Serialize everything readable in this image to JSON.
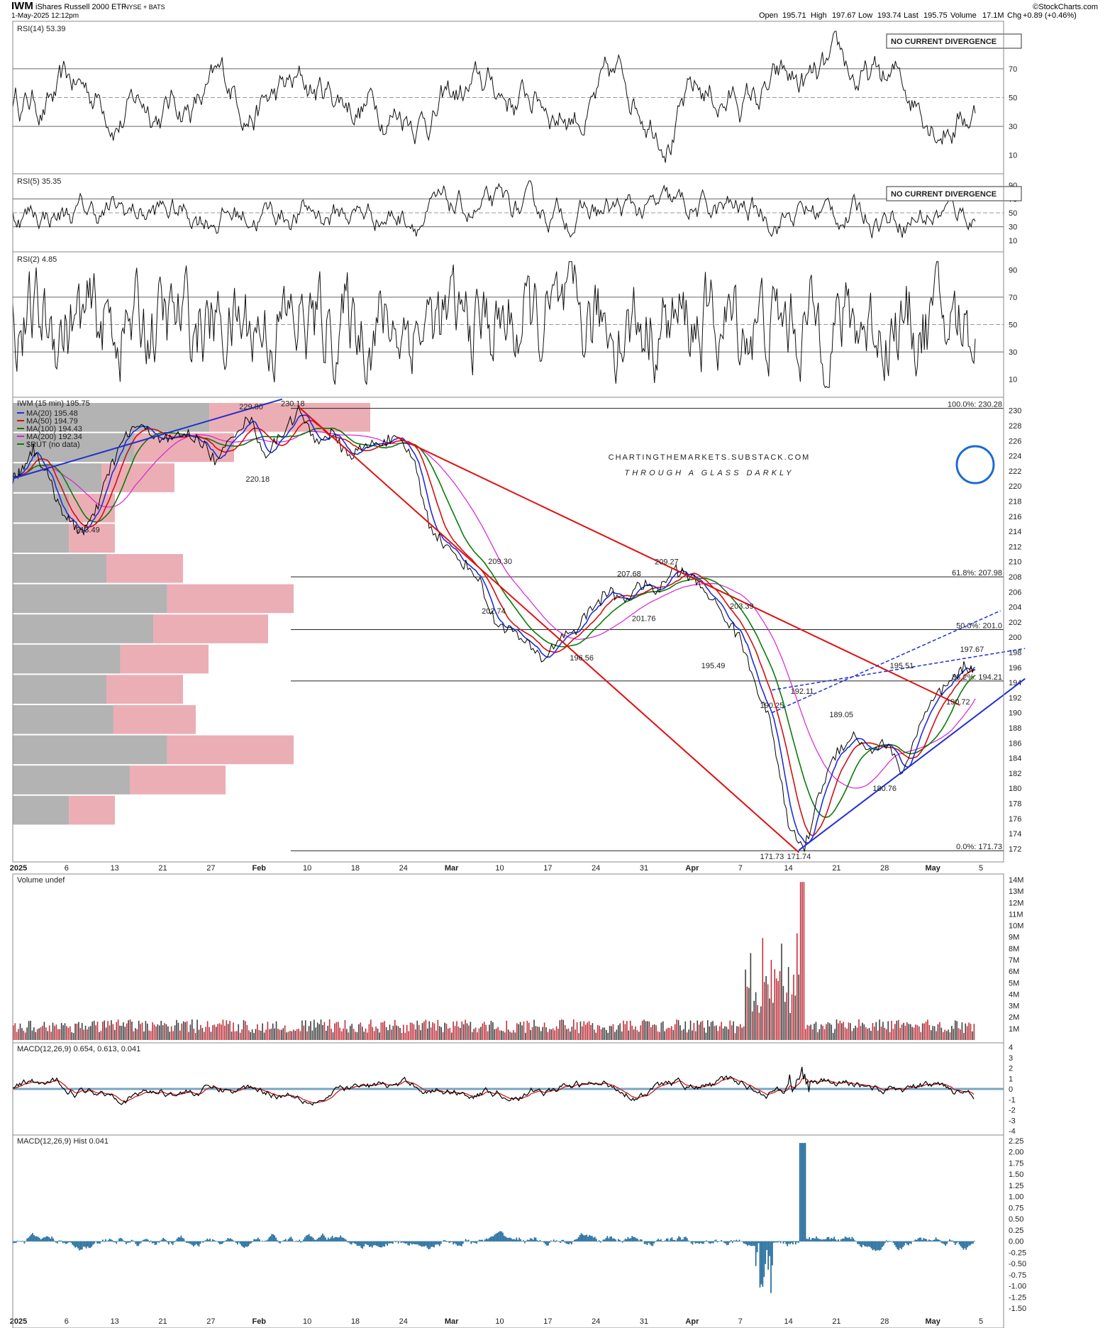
{
  "header": {
    "symbol": "IWM",
    "name": "iShares Russell 2000 ETF",
    "exchange": "NYSE + BATS",
    "date": "1-May-2025 12:12pm",
    "brand": "©StockCharts.com",
    "open_label": "Open",
    "open": "195.71",
    "high_label": "High",
    "high": "197.67",
    "low_label": "Low",
    "low": "193.74",
    "last_label": "Last",
    "last": "195.75",
    "volume_label": "Volume",
    "volume": "17.1M",
    "chg_label": "Chg",
    "chg": "+0.89 (+0.46%)"
  },
  "watermark": {
    "line1": "CHARTINGTHEMARKETS.SUBSTACK.COM",
    "line2": "THROUGH A GLASS DARKLY"
  },
  "colors": {
    "up": "#000000",
    "ma20": "#1f2fd6",
    "ma50": "#d01010",
    "ma100": "#0b7a0b",
    "ma200": "#d622d6",
    "volprofile_up": "#e8a0a8",
    "volprofile_dn": "#9a9a9a",
    "macd_hist": "#1f6a9a",
    "trend": "#e01010",
    "channel": "#1f2fd6"
  },
  "chart_data": [
    {
      "type": "line",
      "panel": "RSI(14)",
      "label": "RSI(14) 53.39",
      "ylim": [
        0,
        100
      ],
      "ticks": [
        10,
        30,
        50,
        70,
        90
      ],
      "annotation": "NO CURRENT DIVERGENCE",
      "last": 53.39
    },
    {
      "type": "line",
      "panel": "RSI(5)",
      "label": "RSI(5) 35.35",
      "ylim": [
        0,
        100
      ],
      "ticks": [
        10,
        30,
        50,
        70,
        90
      ],
      "annotation": "NO CURRENT DIVERGENCE",
      "last": 35.35
    },
    {
      "type": "line",
      "panel": "RSI(2)",
      "label": "RSI(2) 4.85",
      "ylim": [
        0,
        100
      ],
      "ticks": [
        10,
        30,
        50,
        70,
        90
      ],
      "last": 4.85
    },
    {
      "type": "line",
      "panel": "price",
      "label": "IWM (15 min) 195.75",
      "ylim": [
        171,
        231
      ],
      "ticks": [
        172,
        174,
        176,
        178,
        180,
        182,
        184,
        186,
        188,
        190,
        192,
        194,
        196,
        198,
        200,
        202,
        204,
        206,
        208,
        210,
        212,
        214,
        216,
        218,
        220,
        222,
        224,
        226,
        228,
        230
      ],
      "x_ticks": [
        "2025",
        "6",
        "13",
        "21",
        "27",
        "Feb",
        "10",
        "18",
        "24",
        "Mar",
        "10",
        "17",
        "24",
        "31",
        "Apr",
        "7",
        "14",
        "21",
        "28",
        "May",
        "5"
      ],
      "legend": [
        "MA(20) 195.48",
        "MA(50) 194.79",
        "MA(100) 194.43",
        "MA(200) 192.34",
        "$RUT (no data)"
      ],
      "series": [
        {
          "name": "IWM",
          "x": [
            0,
            10,
            25,
            40,
            55,
            70,
            85,
            100,
            118,
            135,
            150,
            170,
            190,
            210,
            230,
            250,
            270,
            290,
            310,
            330,
            350,
            370,
            390,
            410,
            430,
            450,
            470,
            490,
            510,
            530,
            550,
            570,
            590,
            610,
            630,
            650,
            670,
            690,
            710,
            730,
            750,
            770,
            790,
            810,
            830,
            850,
            870,
            890,
            910,
            930,
            950,
            970,
            990,
            1010,
            1030,
            1050,
            1070,
            1090,
            1110,
            1130,
            1150,
            1165,
            1179
          ],
          "y": [
            221,
            222,
            225,
            222,
            218,
            215,
            214,
            216,
            222,
            226,
            228,
            227,
            226,
            227,
            226,
            223,
            227,
            229,
            224,
            227,
            230,
            226,
            227,
            224,
            225,
            226,
            226,
            224,
            215,
            212,
            210,
            208,
            202,
            201,
            199,
            197,
            200,
            201,
            204,
            206,
            205,
            207,
            206,
            209,
            208,
            206,
            203,
            200,
            194,
            188,
            175,
            172,
            180,
            185,
            187,
            185,
            186,
            182,
            188,
            192,
            194,
            196,
            196
          ]
        }
      ],
      "labels": [
        {
          "x": 92,
          "y": 213.49,
          "text": "213.49"
        },
        {
          "x": 300,
          "y": 220.18,
          "text": "220.18"
        },
        {
          "x": 292,
          "y": 229.8,
          "text": "229.80"
        },
        {
          "x": 343,
          "y": 230.18,
          "text": "230.18"
        },
        {
          "x": 597,
          "y": 209.3,
          "text": "209.30"
        },
        {
          "x": 589,
          "y": 202.74,
          "text": "202.74"
        },
        {
          "x": 697,
          "y": 196.56,
          "text": "196.56"
        },
        {
          "x": 755,
          "y": 207.68,
          "text": "207.68"
        },
        {
          "x": 773,
          "y": 201.76,
          "text": "201.76"
        },
        {
          "x": 801,
          "y": 209.27,
          "text": "209.27"
        },
        {
          "x": 893,
          "y": 203.39,
          "text": "203.39"
        },
        {
          "x": 858,
          "y": 195.49,
          "text": "195.49"
        },
        {
          "x": 930,
          "y": 190.25,
          "text": "190.25"
        },
        {
          "x": 967,
          "y": 192.11,
          "text": "192.11"
        },
        {
          "x": 1015,
          "y": 189.05,
          "text": "189.05"
        },
        {
          "x": 1089,
          "y": 195.51,
          "text": "195.51"
        },
        {
          "x": 1175,
          "y": 197.67,
          "text": "197.67"
        },
        {
          "x": 1158,
          "y": 190.72,
          "text": "190.72"
        },
        {
          "x": 1068,
          "y": 180.76,
          "text": "180.76"
        },
        {
          "x": 930,
          "y": 171.73,
          "text": "171.73"
        },
        {
          "x": 963,
          "y": 171.74,
          "text": "171.74"
        }
      ],
      "fib": [
        {
          "text": "100.0%: 230.28",
          "y": 230.28
        },
        {
          "text": "61.8%: 207.98",
          "y": 207.98
        },
        {
          "text": "50.0%: 201.0",
          "y": 201.0
        },
        {
          "text": "38.2%: 194.21",
          "y": 194.21
        },
        {
          "text": "0.0%: 171.73",
          "y": 171.73
        }
      ]
    },
    {
      "type": "bar",
      "panel": "volume",
      "label": "Volume undef",
      "ylim": [
        0,
        14
      ],
      "unit": "M",
      "ticks": [
        "1M",
        "2M",
        "3M",
        "4M",
        "5M",
        "6M",
        "7M",
        "8M",
        "9M",
        "10M",
        "11M",
        "12M",
        "13M",
        "14M"
      ]
    },
    {
      "type": "line",
      "panel": "MACD",
      "label_prefix": "MACD(12,26,9)",
      "macd": "0.654",
      "signal": "0.613",
      "hist": "0.041",
      "ylim": [
        -4,
        4
      ],
      "ticks": [
        -4,
        -3,
        -2,
        -1,
        0,
        1,
        2,
        3,
        4
      ]
    },
    {
      "type": "bar",
      "panel": "MACD hist",
      "label": "MACD(12,26,9) Hist 0.041",
      "ylim": [
        -1.5,
        2.25
      ],
      "ticks": [
        "-1.50",
        "-1.25",
        "-1.00",
        "-0.75",
        "-0.50",
        "-0.25",
        "0.00",
        "0.25",
        "0.50",
        "0.75",
        "1.00",
        "1.25",
        "1.50",
        "1.75",
        "2.00",
        "2.25"
      ],
      "x_ticks": [
        "2025",
        "6",
        "13",
        "21",
        "27",
        "Feb",
        "10",
        "18",
        "24",
        "Mar",
        "10",
        "17",
        "24",
        "31",
        "Apr",
        "7",
        "14",
        "21",
        "28",
        "May",
        "5"
      ]
    }
  ]
}
